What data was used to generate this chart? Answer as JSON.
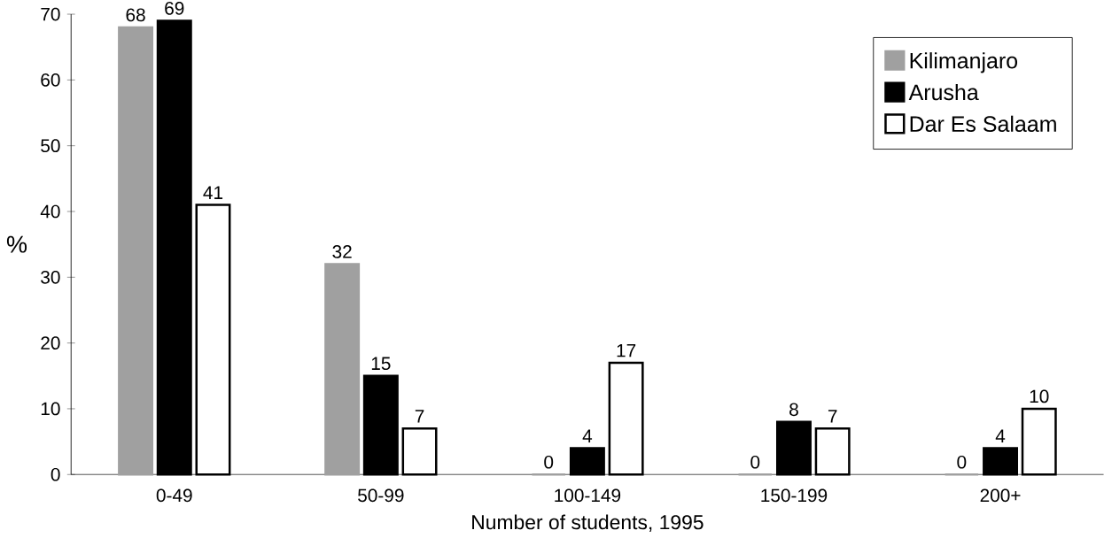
{
  "chart_data": {
    "type": "bar",
    "xlabel": "Number of students, 1995",
    "ylabel": "%",
    "categories": [
      "0-49",
      "50-99",
      "100-149",
      "150-199",
      "200+"
    ],
    "series": [
      {
        "name": "Kilimanjaro",
        "color": "#a0a0a0",
        "values": [
          68,
          32,
          0,
          0,
          0
        ]
      },
      {
        "name": "Arusha",
        "color": "#000000",
        "values": [
          69,
          15,
          4,
          8,
          4
        ]
      },
      {
        "name": "Dar Es Salaam",
        "color": "#ffffff",
        "values": [
          41,
          7,
          17,
          7,
          10
        ]
      }
    ],
    "ylim": [
      0,
      70
    ],
    "yticks": [
      0,
      10,
      20,
      30,
      40,
      50,
      60,
      70
    ],
    "data_labels": true,
    "legend": "top right",
    "grid": false
  }
}
